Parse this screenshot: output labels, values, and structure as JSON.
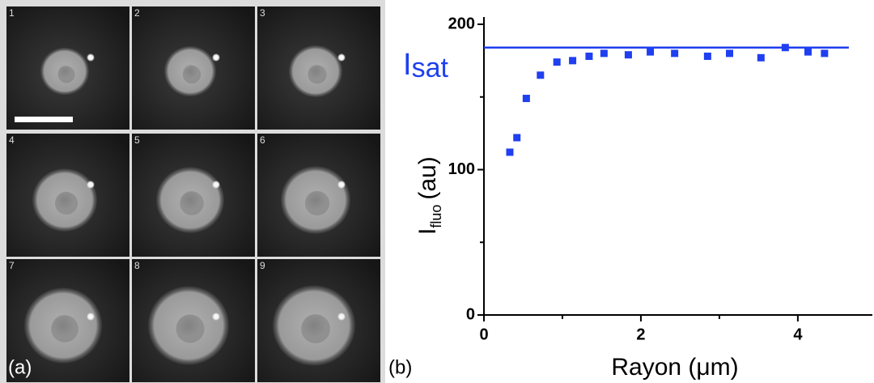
{
  "panel_a": {
    "label": "(a)",
    "frames": [
      "1",
      "2",
      "3",
      "4",
      "5",
      "6",
      "7",
      "8",
      "9"
    ]
  },
  "chart_data": {
    "type": "scatter",
    "panel_label": "(b)",
    "x_label": "Rayon (μm)",
    "y_label": "I",
    "y_label_sub": "fluo",
    "y_label_unit": "(au)",
    "color": "#1f3ff0",
    "x": [
      0.33,
      0.42,
      0.54,
      0.72,
      0.93,
      1.13,
      1.34,
      1.53,
      1.84,
      2.12,
      2.43,
      2.85,
      3.13,
      3.53,
      3.84,
      4.13,
      4.34
    ],
    "values": [
      112,
      122,
      149,
      165,
      174,
      175,
      178,
      180,
      179,
      181,
      180,
      178,
      180,
      177,
      184,
      181,
      180
    ],
    "xlim": [
      0,
      4.95
    ],
    "ylim": [
      0,
      205
    ],
    "xticks": [
      0,
      2,
      4
    ],
    "yticks": [
      0,
      100,
      200
    ],
    "xminorticks": [
      1,
      3
    ],
    "yminorticks": [
      50,
      150
    ],
    "reference_line": {
      "value": 184,
      "x_end": 4.65,
      "label": "I",
      "label_sub": "sat"
    }
  }
}
